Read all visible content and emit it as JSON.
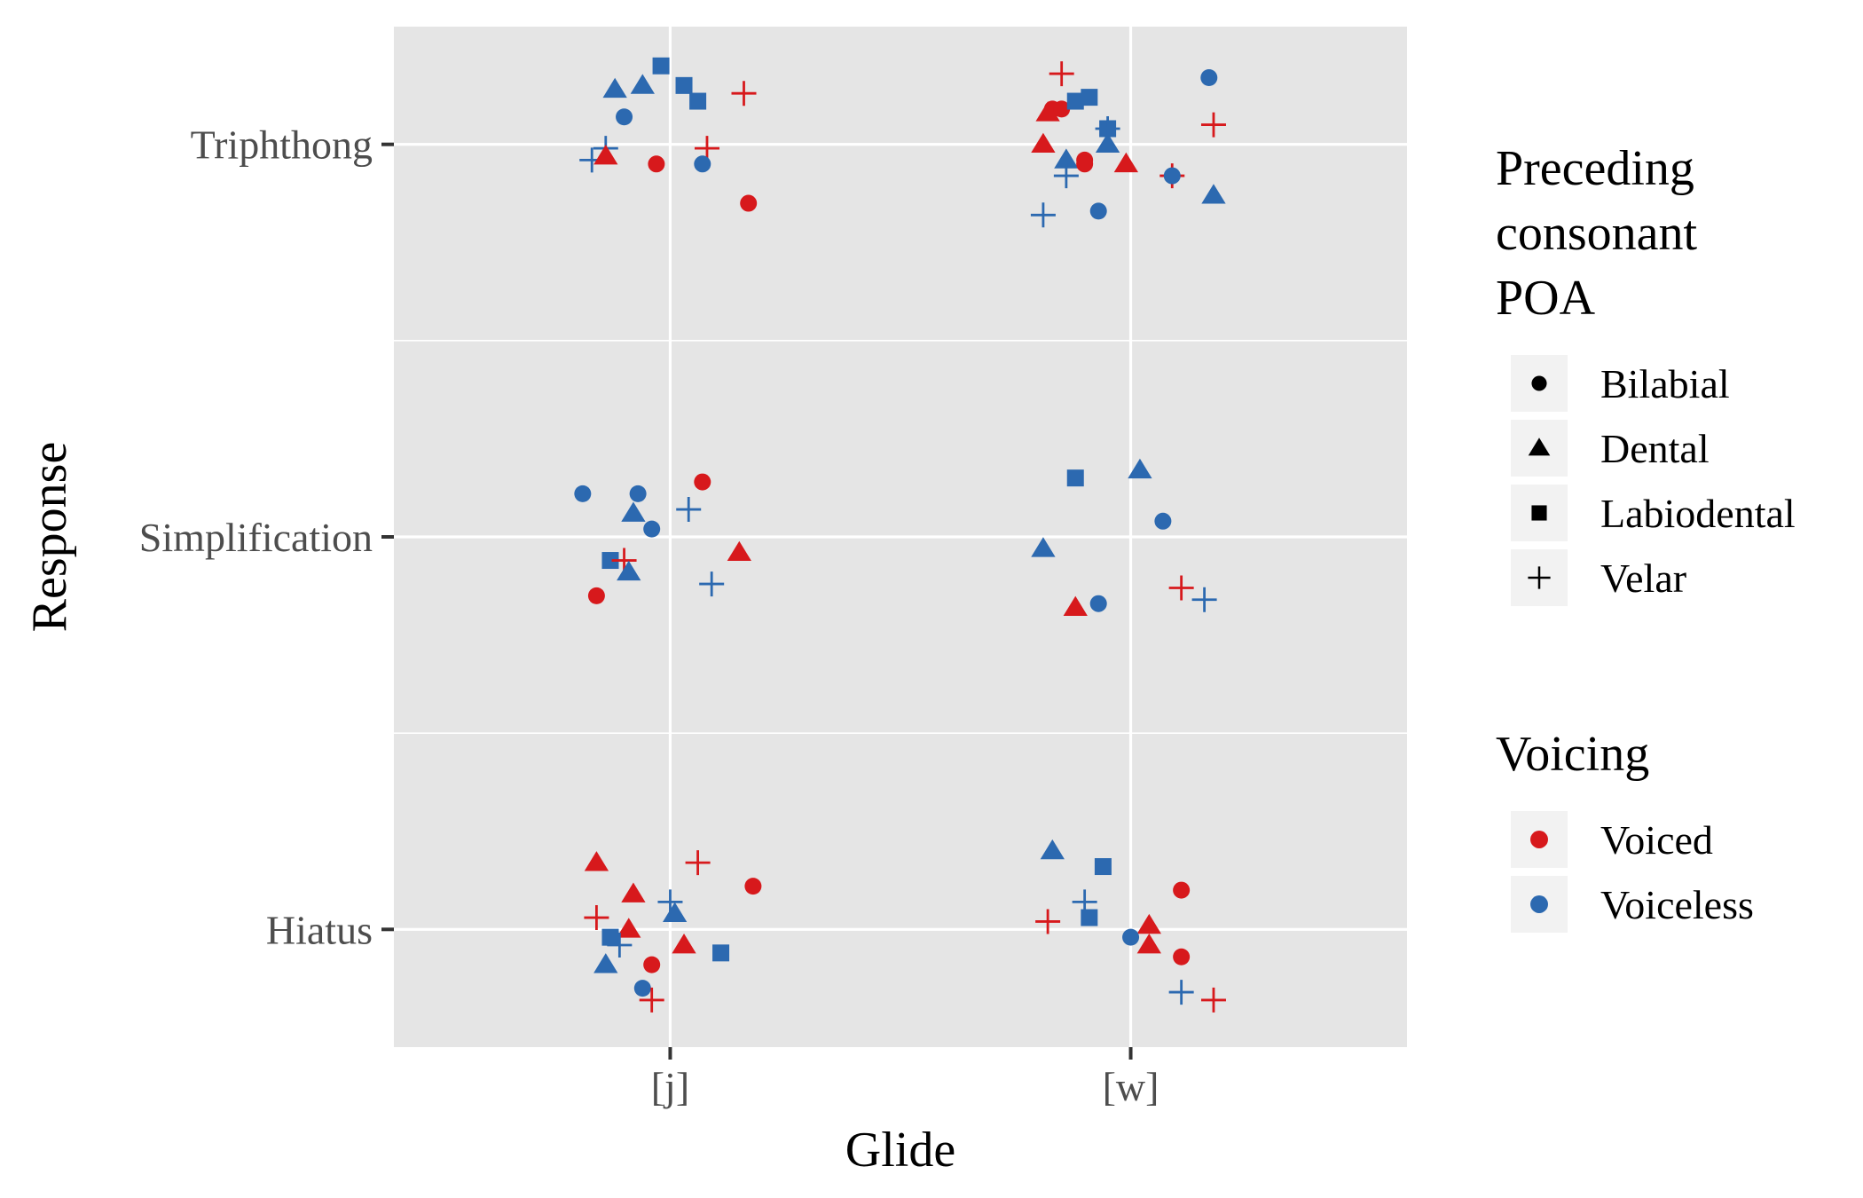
{
  "chart_data": {
    "type": "scatter",
    "xlabel": "Glide",
    "ylabel": "Response",
    "x_categories": [
      "[j]",
      "[w]"
    ],
    "y_categories": [
      "Hiatus",
      "Simplification",
      "Triphthong"
    ],
    "grid": true,
    "jitter": true,
    "legend_placement": "right",
    "legends": [
      {
        "title_lines": [
          "Preceding",
          "consonant",
          "POA"
        ],
        "aesthetic": "shape",
        "entries": [
          {
            "label": "Bilabial",
            "shape": "circle"
          },
          {
            "label": "Dental",
            "shape": "triangle"
          },
          {
            "label": "Labiodental",
            "shape": "square"
          },
          {
            "label": "Velar",
            "shape": "plus"
          }
        ]
      },
      {
        "title_lines": [
          "Voicing"
        ],
        "aesthetic": "color",
        "entries": [
          {
            "label": "Voiced",
            "color": "#d7191c"
          },
          {
            "label": "Voiceless",
            "color": "#2c69b0"
          }
        ]
      }
    ],
    "colors": {
      "Voiced": "#d7191c",
      "Voiceless": "#2c69b0"
    },
    "points": [
      {
        "x": 0.88,
        "y": 3.14,
        "poa": "Dental",
        "voicing": "Voiceless"
      },
      {
        "x": 0.94,
        "y": 3.15,
        "poa": "Dental",
        "voicing": "Voiceless"
      },
      {
        "x": 0.9,
        "y": 3.07,
        "poa": "Bilabial",
        "voicing": "Voiceless"
      },
      {
        "x": 0.98,
        "y": 3.2,
        "poa": "Labiodental",
        "voicing": "Voiceless"
      },
      {
        "x": 1.03,
        "y": 3.15,
        "poa": "Labiodental",
        "voicing": "Voiceless"
      },
      {
        "x": 1.06,
        "y": 3.11,
        "poa": "Labiodental",
        "voicing": "Voiceless"
      },
      {
        "x": 1.16,
        "y": 3.13,
        "poa": "Velar",
        "voicing": "Voiced"
      },
      {
        "x": 0.86,
        "y": 2.99,
        "poa": "Velar",
        "voicing": "Voiceless"
      },
      {
        "x": 0.83,
        "y": 2.96,
        "poa": "Velar",
        "voicing": "Voiceless"
      },
      {
        "x": 0.86,
        "y": 2.97,
        "poa": "Dental",
        "voicing": "Voiced"
      },
      {
        "x": 1.08,
        "y": 2.99,
        "poa": "Velar",
        "voicing": "Voiced"
      },
      {
        "x": 0.97,
        "y": 2.95,
        "poa": "Bilabial",
        "voicing": "Voiced"
      },
      {
        "x": 1.07,
        "y": 2.95,
        "poa": "Bilabial",
        "voicing": "Voiceless"
      },
      {
        "x": 1.17,
        "y": 2.85,
        "poa": "Bilabial",
        "voicing": "Voiced"
      },
      {
        "x": 1.85,
        "y": 3.18,
        "poa": "Velar",
        "voicing": "Voiced"
      },
      {
        "x": 1.83,
        "y": 3.09,
        "poa": "Bilabial",
        "voicing": "Voiced"
      },
      {
        "x": 1.85,
        "y": 3.09,
        "poa": "Bilabial",
        "voicing": "Voiced"
      },
      {
        "x": 1.82,
        "y": 3.08,
        "poa": "Dental",
        "voicing": "Voiced"
      },
      {
        "x": 1.88,
        "y": 3.11,
        "poa": "Labiodental",
        "voicing": "Voiceless"
      },
      {
        "x": 1.91,
        "y": 3.12,
        "poa": "Labiodental",
        "voicing": "Voiceless"
      },
      {
        "x": 1.95,
        "y": 3.04,
        "poa": "Labiodental",
        "voicing": "Voiceless"
      },
      {
        "x": 1.95,
        "y": 3.04,
        "poa": "Velar",
        "voicing": "Voiceless"
      },
      {
        "x": 2.17,
        "y": 3.17,
        "poa": "Bilabial",
        "voicing": "Voiceless"
      },
      {
        "x": 2.18,
        "y": 3.05,
        "poa": "Velar",
        "voicing": "Voiced"
      },
      {
        "x": 1.81,
        "y": 3.0,
        "poa": "Dental",
        "voicing": "Voiced"
      },
      {
        "x": 1.95,
        "y": 3.0,
        "poa": "Dental",
        "voicing": "Voiceless"
      },
      {
        "x": 1.86,
        "y": 2.96,
        "poa": "Dental",
        "voicing": "Voiceless"
      },
      {
        "x": 1.9,
        "y": 2.96,
        "poa": "Bilabial",
        "voicing": "Voiced"
      },
      {
        "x": 1.9,
        "y": 2.95,
        "poa": "Bilabial",
        "voicing": "Voiced"
      },
      {
        "x": 1.99,
        "y": 2.95,
        "poa": "Dental",
        "voicing": "Voiced"
      },
      {
        "x": 1.86,
        "y": 2.92,
        "poa": "Velar",
        "voicing": "Voiceless"
      },
      {
        "x": 2.09,
        "y": 2.92,
        "poa": "Velar",
        "voicing": "Voiced"
      },
      {
        "x": 2.09,
        "y": 2.92,
        "poa": "Bilabial",
        "voicing": "Voiceless"
      },
      {
        "x": 2.18,
        "y": 2.87,
        "poa": "Dental",
        "voicing": "Voiceless"
      },
      {
        "x": 1.81,
        "y": 2.82,
        "poa": "Velar",
        "voicing": "Voiceless"
      },
      {
        "x": 1.93,
        "y": 2.83,
        "poa": "Bilabial",
        "voicing": "Voiceless"
      },
      {
        "x": 0.81,
        "y": 2.11,
        "poa": "Bilabial",
        "voicing": "Voiceless"
      },
      {
        "x": 0.93,
        "y": 2.11,
        "poa": "Bilabial",
        "voicing": "Voiceless"
      },
      {
        "x": 1.07,
        "y": 2.14,
        "poa": "Bilabial",
        "voicing": "Voiced"
      },
      {
        "x": 0.92,
        "y": 2.06,
        "poa": "Dental",
        "voicing": "Voiceless"
      },
      {
        "x": 1.04,
        "y": 2.07,
        "poa": "Velar",
        "voicing": "Voiceless"
      },
      {
        "x": 0.96,
        "y": 2.02,
        "poa": "Bilabial",
        "voicing": "Voiceless"
      },
      {
        "x": 1.15,
        "y": 1.96,
        "poa": "Dental",
        "voicing": "Voiced"
      },
      {
        "x": 0.87,
        "y": 1.94,
        "poa": "Labiodental",
        "voicing": "Voiceless"
      },
      {
        "x": 0.9,
        "y": 1.94,
        "poa": "Velar",
        "voicing": "Voiced"
      },
      {
        "x": 0.91,
        "y": 1.91,
        "poa": "Dental",
        "voicing": "Voiceless"
      },
      {
        "x": 1.09,
        "y": 1.88,
        "poa": "Velar",
        "voicing": "Voiceless"
      },
      {
        "x": 0.84,
        "y": 1.85,
        "poa": "Bilabial",
        "voicing": "Voiced"
      },
      {
        "x": 1.88,
        "y": 2.15,
        "poa": "Labiodental",
        "voicing": "Voiceless"
      },
      {
        "x": 2.02,
        "y": 2.17,
        "poa": "Dental",
        "voicing": "Voiceless"
      },
      {
        "x": 2.07,
        "y": 2.04,
        "poa": "Bilabial",
        "voicing": "Voiceless"
      },
      {
        "x": 1.81,
        "y": 1.97,
        "poa": "Dental",
        "voicing": "Voiceless"
      },
      {
        "x": 2.11,
        "y": 1.87,
        "poa": "Velar",
        "voicing": "Voiced"
      },
      {
        "x": 2.16,
        "y": 1.84,
        "poa": "Velar",
        "voicing": "Voiceless"
      },
      {
        "x": 1.93,
        "y": 1.83,
        "poa": "Bilabial",
        "voicing": "Voiceless"
      },
      {
        "x": 1.88,
        "y": 1.82,
        "poa": "Dental",
        "voicing": "Voiced"
      },
      {
        "x": 0.84,
        "y": 1.17,
        "poa": "Dental",
        "voicing": "Voiced"
      },
      {
        "x": 1.06,
        "y": 1.17,
        "poa": "Velar",
        "voicing": "Voiced"
      },
      {
        "x": 1.18,
        "y": 1.11,
        "poa": "Bilabial",
        "voicing": "Voiced"
      },
      {
        "x": 0.92,
        "y": 1.09,
        "poa": "Dental",
        "voicing": "Voiced"
      },
      {
        "x": 1.0,
        "y": 1.07,
        "poa": "Velar",
        "voicing": "Voiceless"
      },
      {
        "x": 1.01,
        "y": 1.04,
        "poa": "Dental",
        "voicing": "Voiceless"
      },
      {
        "x": 0.84,
        "y": 1.03,
        "poa": "Velar",
        "voicing": "Voiced"
      },
      {
        "x": 0.91,
        "y": 1.0,
        "poa": "Dental",
        "voicing": "Voiced"
      },
      {
        "x": 0.87,
        "y": 0.98,
        "poa": "Labiodental",
        "voicing": "Voiceless"
      },
      {
        "x": 0.89,
        "y": 0.96,
        "poa": "Velar",
        "voicing": "Voiceless"
      },
      {
        "x": 1.03,
        "y": 0.96,
        "poa": "Dental",
        "voicing": "Voiced"
      },
      {
        "x": 1.11,
        "y": 0.94,
        "poa": "Labiodental",
        "voicing": "Voiceless"
      },
      {
        "x": 0.86,
        "y": 0.91,
        "poa": "Dental",
        "voicing": "Voiceless"
      },
      {
        "x": 0.96,
        "y": 0.91,
        "poa": "Bilabial",
        "voicing": "Voiced"
      },
      {
        "x": 0.94,
        "y": 0.85,
        "poa": "Bilabial",
        "voicing": "Voiceless"
      },
      {
        "x": 0.96,
        "y": 0.82,
        "poa": "Velar",
        "voicing": "Voiced"
      },
      {
        "x": 1.83,
        "y": 1.2,
        "poa": "Dental",
        "voicing": "Voiceless"
      },
      {
        "x": 1.94,
        "y": 1.16,
        "poa": "Labiodental",
        "voicing": "Voiceless"
      },
      {
        "x": 2.11,
        "y": 1.1,
        "poa": "Bilabial",
        "voicing": "Voiced"
      },
      {
        "x": 1.9,
        "y": 1.07,
        "poa": "Velar",
        "voicing": "Voiceless"
      },
      {
        "x": 1.91,
        "y": 1.03,
        "poa": "Labiodental",
        "voicing": "Voiceless"
      },
      {
        "x": 1.82,
        "y": 1.02,
        "poa": "Velar",
        "voicing": "Voiced"
      },
      {
        "x": 2.04,
        "y": 1.01,
        "poa": "Dental",
        "voicing": "Voiced"
      },
      {
        "x": 2.0,
        "y": 0.98,
        "poa": "Bilabial",
        "voicing": "Voiceless"
      },
      {
        "x": 2.04,
        "y": 0.96,
        "poa": "Dental",
        "voicing": "Voiced"
      },
      {
        "x": 2.11,
        "y": 0.93,
        "poa": "Bilabial",
        "voicing": "Voiced"
      },
      {
        "x": 2.11,
        "y": 0.84,
        "poa": "Velar",
        "voicing": "Voiceless"
      },
      {
        "x": 2.18,
        "y": 0.82,
        "poa": "Velar",
        "voicing": "Voiced"
      }
    ]
  }
}
